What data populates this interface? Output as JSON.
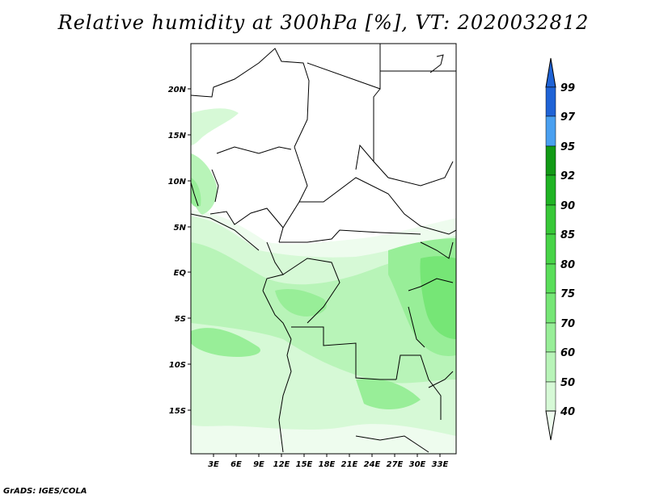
{
  "title": "Relative humidity at 300hPa [%], VT: 2020032812",
  "footer": "GrADS: IGES/COLA",
  "map": {
    "lat_ticks": [
      "20N",
      "15N",
      "10N",
      "5N",
      "EQ",
      "5S",
      "10S",
      "15S"
    ],
    "lon_ticks": [
      "3E",
      "6E",
      "9E",
      "12E",
      "15E",
      "18E",
      "21E",
      "24E",
      "27E",
      "30E",
      "33E"
    ]
  },
  "colorbar": {
    "labels": [
      "99",
      "97",
      "95",
      "92",
      "90",
      "85",
      "80",
      "75",
      "70",
      "60",
      "50",
      "40"
    ],
    "colors": {
      "99": "#1f63d6",
      "97": "#2f7fe8",
      "95": "#4aa0f0",
      "92": "#129a16",
      "90": "#20b424",
      "85": "#38c838",
      "80": "#52dc52",
      "75": "#76e676",
      "70": "#98ee98",
      "60": "#b8f4b8",
      "50": "#d6f9d6",
      "40": "#eefcee"
    }
  }
}
